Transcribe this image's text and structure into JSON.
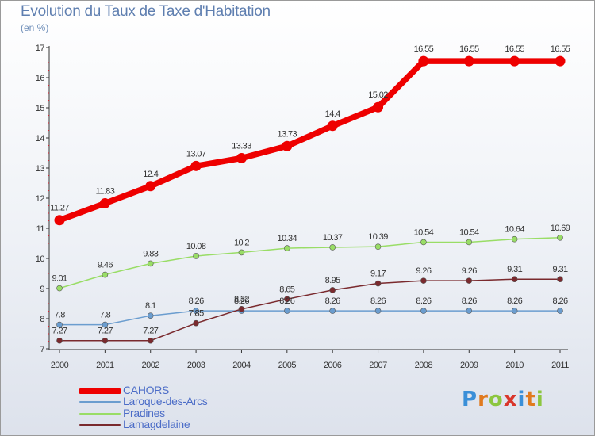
{
  "title": "Evolution du Taux de Taxe d'Habitation",
  "subtitle": "(en %)",
  "logo": {
    "letters": [
      "P",
      "r",
      "o",
      "x",
      "i",
      "t",
      "i"
    ],
    "colors": [
      "#3a8fd8",
      "#e07a1f",
      "#8cc63f",
      "#d9362b",
      "#3a8fd8",
      "#e07a1f",
      "#8cc63f"
    ]
  },
  "chart_data": {
    "type": "line",
    "title": "Evolution du Taux de Taxe d'Habitation",
    "ylabel": "(en %)",
    "xlabel": "",
    "x": [
      "2000",
      "2001",
      "2002",
      "2003",
      "2004",
      "2005",
      "2006",
      "2007",
      "2008",
      "2009",
      "2010",
      "2011"
    ],
    "ylim": [
      7,
      17
    ],
    "yticks": [
      "7",
      "8",
      "9",
      "10",
      "11",
      "12",
      "13",
      "14",
      "15",
      "16",
      "17"
    ],
    "grid": false,
    "legend_position": "bottom-left",
    "series": [
      {
        "name": "CAHORS",
        "color": "#ee0000",
        "values": [
          11.27,
          11.83,
          12.4,
          13.07,
          13.33,
          13.73,
          14.4,
          15.02,
          16.55,
          16.55,
          16.55,
          16.55
        ],
        "labels": [
          "11.27",
          "11.83",
          "12.4",
          "13.07",
          "13.33",
          "13.73",
          "14.4",
          "15.02",
          "16.55",
          "16.55",
          "16.55",
          "16.55"
        ]
      },
      {
        "name": "Laroque-des-Arcs",
        "color": "#6b9dcf",
        "values": [
          7.8,
          7.8,
          8.1,
          8.26,
          8.26,
          8.26,
          8.26,
          8.26,
          8.26,
          8.26,
          8.26,
          8.26
        ],
        "labels": [
          "7.8",
          "7.8",
          "8.1",
          "8.26",
          "8.26",
          "8.26",
          "8.26",
          "8.26",
          "8.26",
          "8.26",
          "8.26",
          "8.26"
        ]
      },
      {
        "name": "Pradines",
        "color": "#99dd66",
        "values": [
          9.01,
          9.46,
          9.83,
          10.08,
          10.2,
          10.34,
          10.37,
          10.39,
          10.54,
          10.54,
          10.64,
          10.69
        ],
        "labels": [
          "9.01",
          "9.46",
          "9.83",
          "10.08",
          "10.2",
          "10.34",
          "10.37",
          "10.39",
          "10.54",
          "10.54",
          "10.64",
          "10.69"
        ]
      },
      {
        "name": "Lamagdelaine",
        "color": "#7a2a2e",
        "values": [
          7.27,
          7.27,
          7.27,
          7.85,
          8.32,
          8.65,
          8.95,
          9.17,
          9.26,
          9.26,
          9.31,
          9.31
        ],
        "labels": [
          "7.27",
          "7.27",
          "7.27",
          "7.85",
          "8.32",
          "8.65",
          "8.95",
          "9.17",
          "9.26",
          "9.26",
          "9.31",
          "9.31"
        ]
      }
    ]
  }
}
